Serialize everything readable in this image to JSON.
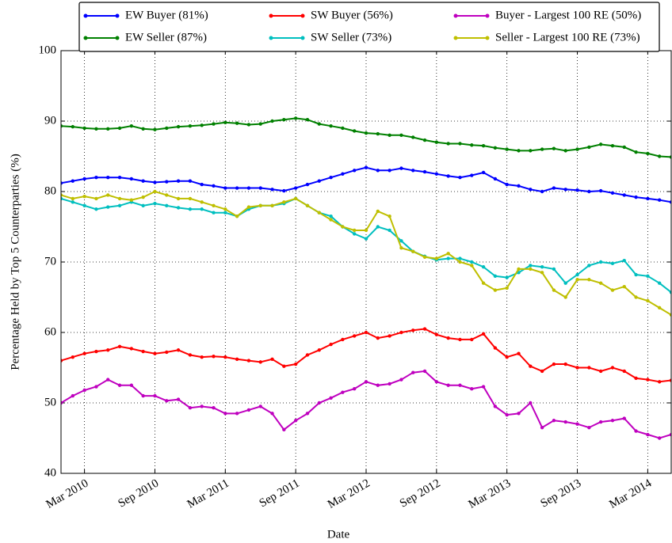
{
  "chart_data": {
    "type": "line",
    "xlabel": "Date",
    "ylabel": "Percentage Held by Top 5 Counterparties (%)",
    "x": [
      "2010-01",
      "2010-02",
      "2010-03",
      "2010-04",
      "2010-05",
      "2010-06",
      "2010-07",
      "2010-08",
      "2010-09",
      "2010-10",
      "2010-11",
      "2010-12",
      "2011-01",
      "2011-02",
      "2011-03",
      "2011-04",
      "2011-05",
      "2011-06",
      "2011-07",
      "2011-08",
      "2011-09",
      "2011-10",
      "2011-11",
      "2011-12",
      "2012-01",
      "2012-02",
      "2012-03",
      "2012-04",
      "2012-05",
      "2012-06",
      "2012-07",
      "2012-08",
      "2012-09",
      "2012-10",
      "2012-11",
      "2012-12",
      "2013-01",
      "2013-02",
      "2013-03",
      "2013-04",
      "2013-05",
      "2013-06",
      "2013-07",
      "2013-08",
      "2013-09",
      "2013-10",
      "2013-11",
      "2013-12",
      "2014-01",
      "2014-02",
      "2014-03",
      "2014-04",
      "2014-05"
    ],
    "xlim": [
      "2010-01",
      "2014-05"
    ],
    "xticks": [
      {
        "value": "2010-03",
        "label": "Mar 2010"
      },
      {
        "value": "2010-09",
        "label": "Sep 2010"
      },
      {
        "value": "2011-03",
        "label": "Mar 2011"
      },
      {
        "value": "2011-09",
        "label": "Sep 2011"
      },
      {
        "value": "2012-03",
        "label": "Mar 2012"
      },
      {
        "value": "2012-09",
        "label": "Sep 2012"
      },
      {
        "value": "2013-03",
        "label": "Mar 2013"
      },
      {
        "value": "2013-09",
        "label": "Sep 2013"
      },
      {
        "value": "2014-03",
        "label": "Mar 2014"
      }
    ],
    "ylim": [
      40,
      100
    ],
    "yticks": [
      40,
      50,
      60,
      70,
      80,
      90,
      100
    ],
    "grid": true,
    "legend": "upper center",
    "series": [
      {
        "name": "EW Buyer (81%)",
        "color": "#0000ff",
        "values": [
          81.2,
          81.5,
          81.8,
          82,
          82,
          82,
          81.8,
          81.5,
          81.3,
          81.4,
          81.5,
          81.5,
          81,
          80.8,
          80.5,
          80.5,
          80.5,
          80.5,
          80.3,
          80.1,
          80.5,
          81,
          81.5,
          82,
          82.5,
          83,
          83.4,
          83,
          83,
          83.3,
          83,
          82.8,
          82.5,
          82.2,
          82,
          82.3,
          82.7,
          81.8,
          81,
          80.8,
          80.3,
          80,
          80.5,
          80.3,
          80.2,
          80,
          80.1,
          79.8,
          79.5,
          79.2,
          79,
          78.8,
          78.5
        ]
      },
      {
        "name": "EW Seller (87%)",
        "color": "#008000",
        "values": [
          89.3,
          89.2,
          89,
          88.9,
          88.9,
          89,
          89.3,
          88.9,
          88.8,
          89,
          89.2,
          89.3,
          89.4,
          89.6,
          89.8,
          89.7,
          89.5,
          89.6,
          90,
          90.2,
          90.4,
          90.2,
          89.6,
          89.3,
          89,
          88.6,
          88.3,
          88.2,
          88,
          88,
          87.7,
          87.3,
          87,
          86.8,
          86.8,
          86.6,
          86.5,
          86.2,
          86,
          85.8,
          85.8,
          86,
          86.1,
          85.8,
          86,
          86.3,
          86.7,
          86.5,
          86.3,
          85.6,
          85.4,
          85,
          84.9
        ]
      },
      {
        "name": "SW Buyer (56%)",
        "color": "#ff0000",
        "values": [
          56,
          56.5,
          57,
          57.3,
          57.5,
          58,
          57.7,
          57.3,
          57,
          57.2,
          57.5,
          56.8,
          56.5,
          56.6,
          56.5,
          56.2,
          56,
          55.8,
          56.2,
          55.2,
          55.5,
          56.8,
          57.5,
          58.3,
          59,
          59.5,
          60,
          59.2,
          59.5,
          60,
          60.3,
          60.5,
          59.7,
          59.2,
          59,
          59,
          59.8,
          57.8,
          56.5,
          57,
          55.2,
          54.5,
          55.5,
          55.5,
          55,
          55,
          54.5,
          55,
          54.5,
          53.5,
          53.3,
          53,
          53.2
        ]
      },
      {
        "name": "SW Seller (73%)",
        "color": "#00bfbf",
        "values": [
          79,
          78.5,
          78,
          77.5,
          77.8,
          78,
          78.5,
          78,
          78.3,
          78,
          77.7,
          77.5,
          77.5,
          77,
          77,
          76.5,
          77.5,
          78,
          78,
          78.3,
          79,
          78,
          77,
          76.5,
          75,
          74,
          73.3,
          75,
          74.5,
          73,
          71.5,
          70.8,
          70.3,
          70.5,
          70.5,
          70,
          69.3,
          68,
          67.8,
          68.5,
          69.5,
          69.3,
          69,
          67,
          68.2,
          69.5,
          70,
          69.8,
          70.2,
          68.2,
          68,
          67,
          65.7
        ]
      },
      {
        "name": "Buyer - Largest 100 RE (50%)",
        "color": "#bf00bf",
        "values": [
          50,
          51,
          51.8,
          52.3,
          53.3,
          52.5,
          52.5,
          51,
          51,
          50.3,
          50.5,
          49.3,
          49.5,
          49.3,
          48.5,
          48.5,
          49,
          49.5,
          48.5,
          46.2,
          47.5,
          48.5,
          50,
          50.7,
          51.5,
          52,
          53,
          52.5,
          52.7,
          53.3,
          54.3,
          54.5,
          53,
          52.5,
          52.5,
          52,
          52.3,
          49.5,
          48.3,
          48.5,
          50,
          46.5,
          47.5,
          47.3,
          47,
          46.5,
          47.3,
          47.5,
          47.8,
          46,
          45.5,
          45,
          45.5
        ]
      },
      {
        "name": "Seller - Largest 100 RE (73%)",
        "color": "#bfbf00",
        "values": [
          79.5,
          79,
          79.3,
          79,
          79.5,
          79,
          78.8,
          79.2,
          80,
          79.5,
          79,
          79,
          78.5,
          78,
          77.5,
          76.5,
          77.8,
          78,
          78,
          78.5,
          79,
          78,
          77,
          76,
          75,
          74.5,
          74.5,
          77.2,
          76.5,
          72,
          71.5,
          70.7,
          70.5,
          71.2,
          70,
          69.5,
          67,
          66,
          66.3,
          69,
          69,
          68.5,
          66,
          65,
          67.5,
          67.5,
          67,
          66,
          66.5,
          65,
          64.5,
          63.5,
          62.5
        ]
      }
    ]
  }
}
